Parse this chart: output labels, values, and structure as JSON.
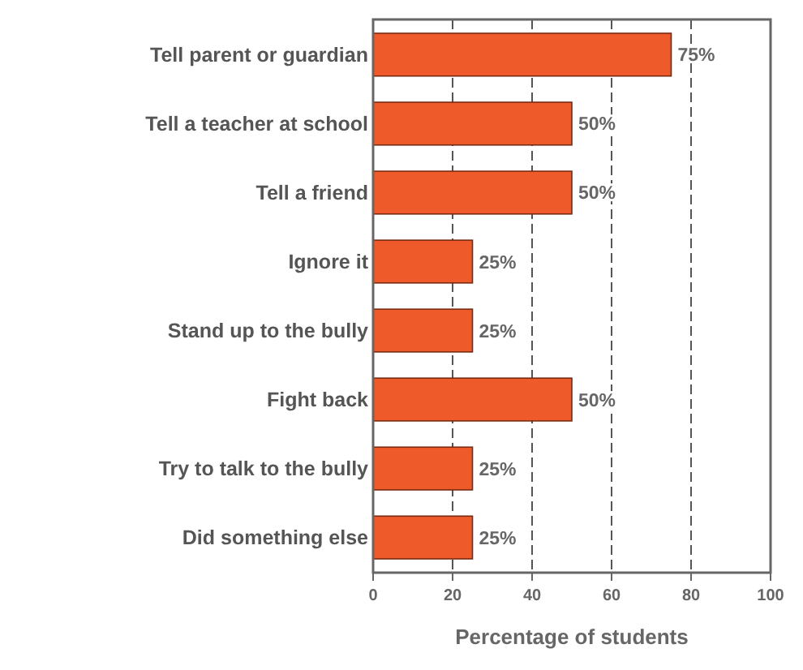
{
  "chart_data": {
    "type": "bar",
    "orientation": "horizontal",
    "xlabel": "Percentage of students",
    "categories": [
      "Tell parent or guardian",
      "Tell a teacher at school",
      "Tell a friend",
      "Ignore it",
      "Stand up to the bully",
      "Fight back",
      "Try to talk to the bully",
      "Did something else"
    ],
    "values": [
      75,
      50,
      50,
      25,
      25,
      50,
      25,
      25
    ],
    "value_labels": [
      "75%",
      "50%",
      "50%",
      "25%",
      "25%",
      "50%",
      "25%",
      "25%"
    ],
    "color": "#ee5a2a",
    "xlim": [
      0,
      100
    ],
    "xticks": [
      0,
      20,
      40,
      60,
      80,
      100
    ],
    "grid": "x"
  }
}
